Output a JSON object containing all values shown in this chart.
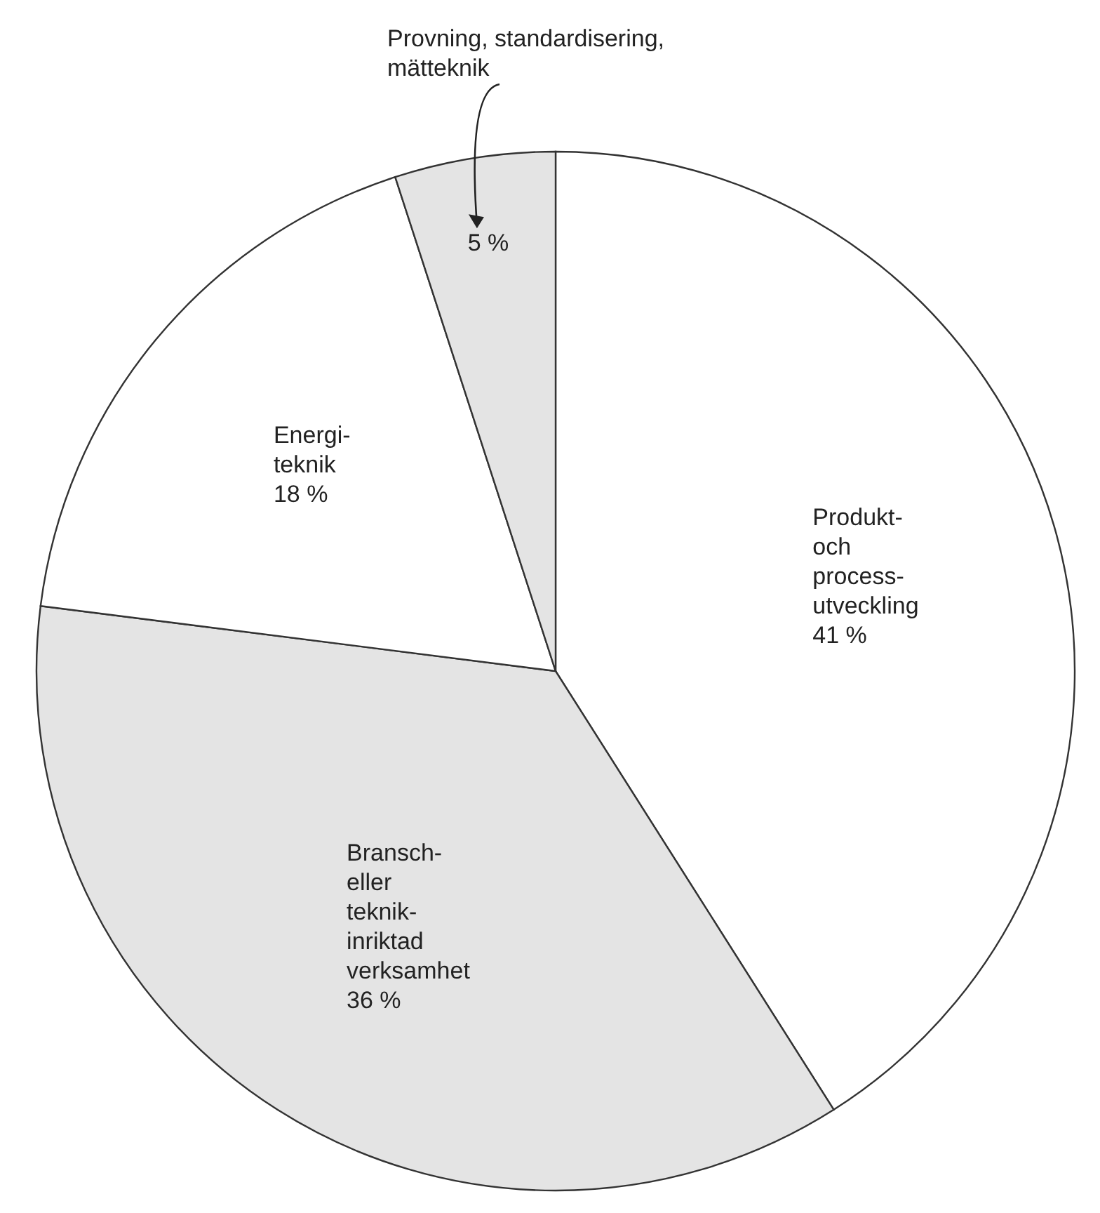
{
  "chart_data": {
    "type": "pie",
    "categories": [
      "Produkt-\noch\nprocess-\nutveckling",
      "Bransch-\neller\nteknik-\ninriktad\nverksamhet",
      "Energi-\nteknik",
      "Provning, standardisering,\nmätteknik"
    ],
    "values": [
      41,
      36,
      18,
      5
    ],
    "value_labels": [
      "41 %",
      "36 %",
      "18 %",
      "5 %"
    ],
    "colors": [
      "#ffffff",
      "#e4e4e4",
      "#ffffff",
      "#e4e4e4"
    ]
  }
}
